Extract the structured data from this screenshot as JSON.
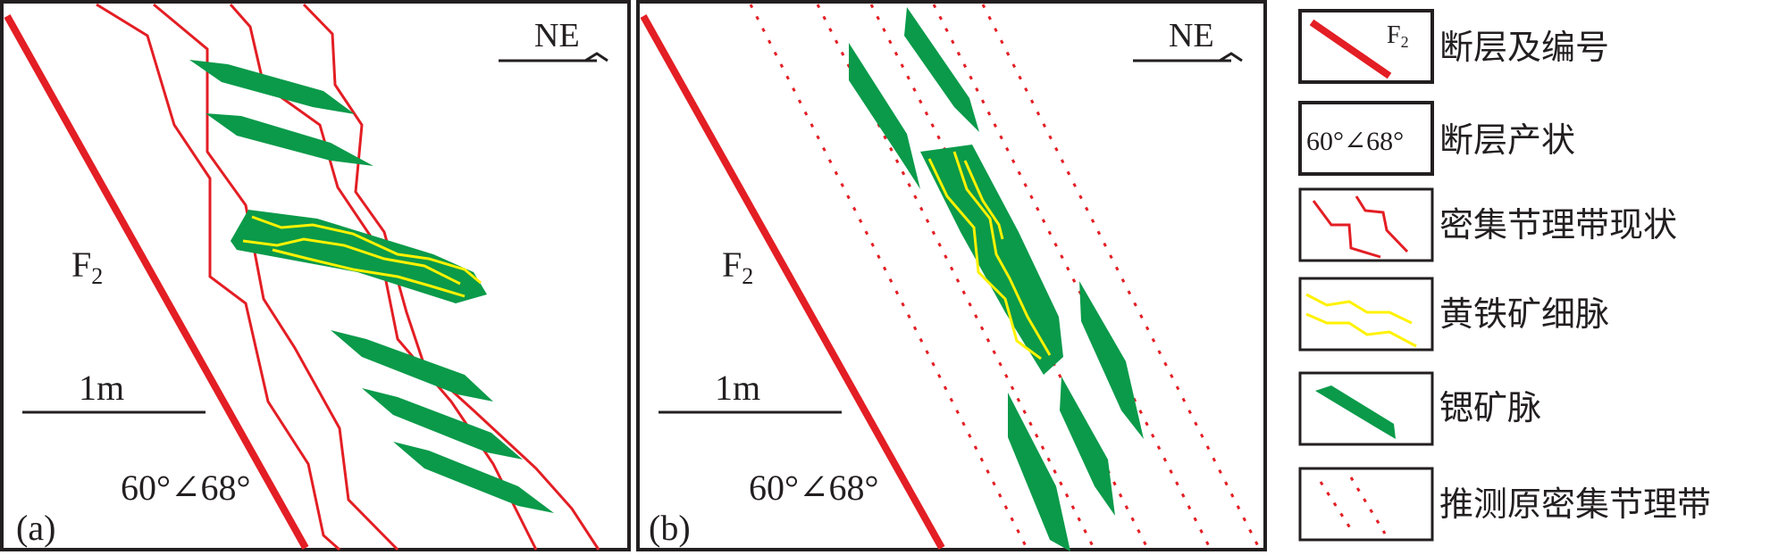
{
  "panel_a": {
    "label": "(a)",
    "north_arrow": "NE",
    "fault_label": "F",
    "fault_subscript": "2",
    "scale_label": "1m",
    "attitude": "60°∠68°"
  },
  "panel_b": {
    "label": "(b)",
    "north_arrow": "NE",
    "fault_label": "F",
    "fault_subscript": "2",
    "scale_label": "1m",
    "attitude": "60°∠68°"
  },
  "legend": {
    "items": [
      {
        "symbol_text": "F",
        "symbol_sub": "2",
        "label": "断层及编号"
      },
      {
        "symbol_text": "60°∠68°",
        "label": "断层产状"
      },
      {
        "label": "密集节理带现状"
      },
      {
        "label": "黄铁矿细脉"
      },
      {
        "label": "锶矿脉"
      },
      {
        "label": "推测原密集节理带"
      }
    ]
  },
  "colors": {
    "fault": "#e31e24",
    "vein": "#0a9a4a",
    "pyrite": "#fff200",
    "joint": "#e31e24",
    "frame": "#231f20"
  }
}
